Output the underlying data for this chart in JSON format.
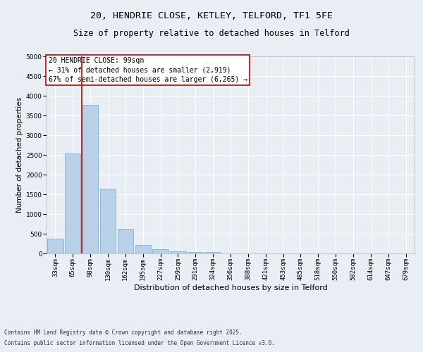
{
  "title1": "20, HENDRIE CLOSE, KETLEY, TELFORD, TF1 5FE",
  "title2": "Size of property relative to detached houses in Telford",
  "xlabel": "Distribution of detached houses by size in Telford",
  "ylabel": "Number of detached properties",
  "categories": [
    "33sqm",
    "65sqm",
    "98sqm",
    "130sqm",
    "162sqm",
    "195sqm",
    "227sqm",
    "259sqm",
    "291sqm",
    "324sqm",
    "356sqm",
    "388sqm",
    "421sqm",
    "453sqm",
    "485sqm",
    "518sqm",
    "550sqm",
    "582sqm",
    "614sqm",
    "647sqm",
    "679sqm"
  ],
  "values": [
    380,
    2530,
    3760,
    1650,
    620,
    215,
    100,
    60,
    40,
    35,
    0,
    0,
    0,
    0,
    0,
    0,
    0,
    0,
    0,
    0,
    0
  ],
  "bar_color": "#b8d0e8",
  "bar_edgecolor": "#6aabd2",
  "vline_color": "#cc0000",
  "ylim": [
    0,
    5000
  ],
  "yticks": [
    0,
    500,
    1000,
    1500,
    2000,
    2500,
    3000,
    3500,
    4000,
    4500,
    5000
  ],
  "annotation_text": "20 HENDRIE CLOSE: 99sqm\n← 31% of detached houses are smaller (2,919)\n67% of semi-detached houses are larger (6,265) →",
  "annotation_box_color": "#cc0000",
  "background_color": "#e8eef4",
  "footer1": "Contains HM Land Registry data © Crown copyright and database right 2025.",
  "footer2": "Contains public sector information licensed under the Open Government Licence v3.0.",
  "title1_fontsize": 9.5,
  "title2_fontsize": 8.5,
  "xlabel_fontsize": 8,
  "ylabel_fontsize": 7.5,
  "tick_fontsize": 6.5,
  "annotation_fontsize": 7,
  "footer_fontsize": 5.5
}
